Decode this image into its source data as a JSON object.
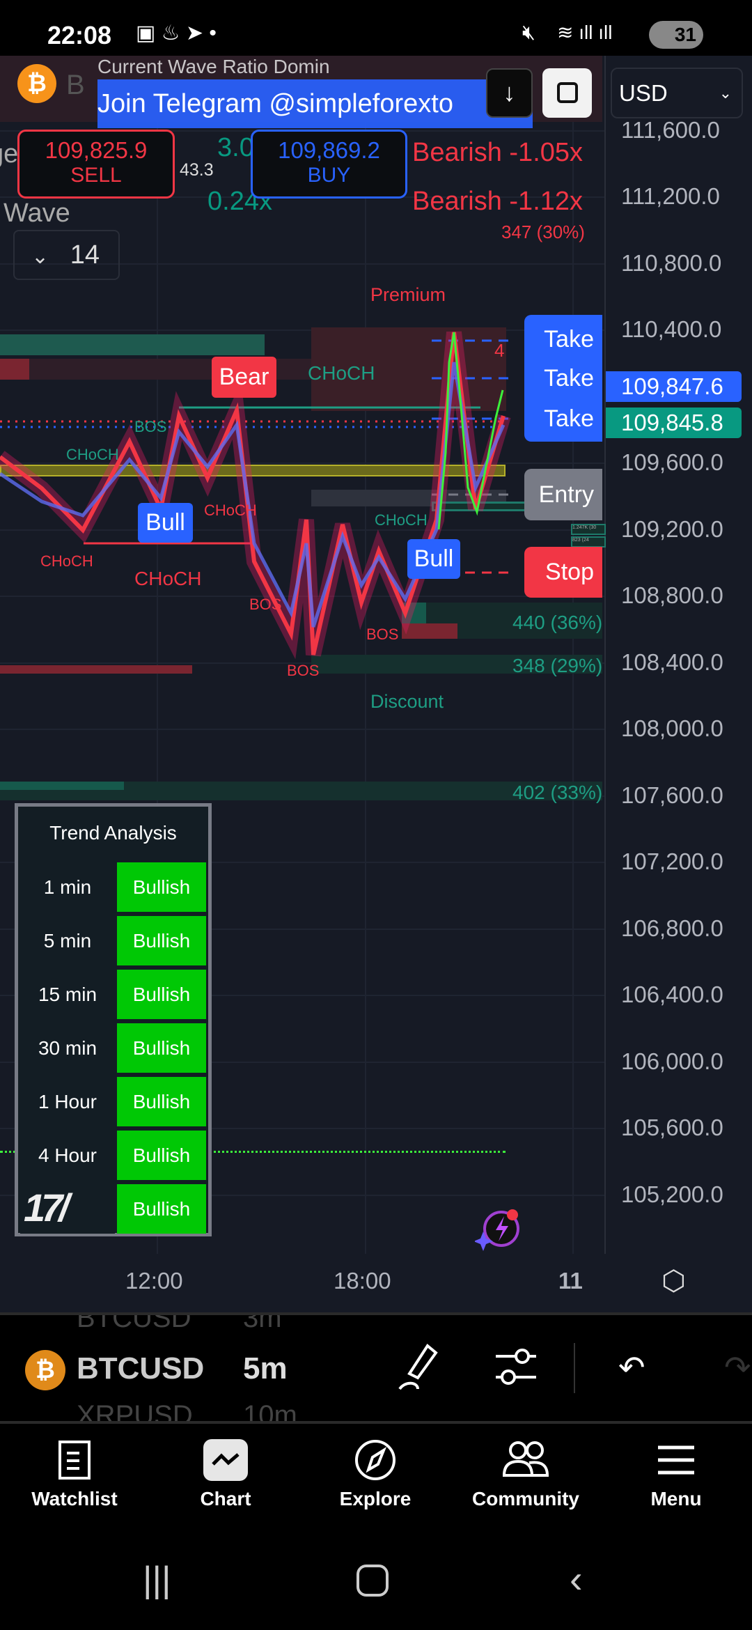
{
  "status_bar": {
    "time": "22:08",
    "battery": "31"
  },
  "chart": {
    "banner_text": "Join Telegram @simpleforexto",
    "banner_ghost_text": "Current Wave Ratio Domin",
    "symbol_letter": "B",
    "sell": {
      "price": "109,825.9",
      "label": "SELL"
    },
    "buy": {
      "price": "109,869.2",
      "label": "BUY"
    },
    "indicator": {
      "row1_left": "ge",
      "row1_mid": "3.0",
      "row1_small": "43.3",
      "row1_right": "Bearish -1.05x",
      "row2_left": "Wave",
      "row2_mid": "0.24x",
      "row2_right": "Bearish -1.12x",
      "row2_small": "347 (30%)"
    },
    "currency": "USD",
    "interval_count": "14",
    "price_axis": [
      "111,600.0",
      "111,200.0",
      "110,800.0",
      "110,400.0",
      "109,600.0",
      "109,200.0",
      "108,800.0",
      "108,400.0",
      "108,000.0",
      "107,600.0",
      "107,200.0",
      "106,800.0",
      "106,400.0",
      "106,000.0",
      "105,600.0",
      "105,200.0"
    ],
    "current_price_ask": "109,847.6",
    "current_price_bid": "109,845.8",
    "time_axis": [
      "12:00",
      "18:00",
      "11"
    ],
    "labels": {
      "premium": "Premium",
      "discount": "Discount",
      "bear": "Bear",
      "bull": "Bull",
      "choch": "CHoCH",
      "bos": "BOS",
      "take": "Take",
      "entry": "Entry",
      "stop": "Stop",
      "vol1": "440 (36%)",
      "vol2": "348 (29%)",
      "vol3": "402 (33%)",
      "small1": "1.247K (30",
      "small2": "823 (24",
      "four": "4"
    },
    "trend_table": {
      "title": "Trend Analysis",
      "rows": [
        {
          "tf": "1 min",
          "trend": "Bullish"
        },
        {
          "tf": "5 min",
          "trend": "Bullish"
        },
        {
          "tf": "15 min",
          "trend": "Bullish"
        },
        {
          "tf": "30 min",
          "trend": "Bullish"
        },
        {
          "tf": "1 Hour",
          "trend": "Bullish"
        },
        {
          "tf": "4 Hour",
          "trend": "Bullish"
        },
        {
          "tf": "",
          "trend": "Bullish"
        }
      ]
    },
    "colors": {
      "bg": "#161a25",
      "bull": "#2962ff",
      "bear": "#f23645",
      "bullish_cell": "#00c805",
      "teal": "#089981"
    }
  },
  "symbol_bar": {
    "symbol": "BTCUSD",
    "interval": "5m",
    "prev_symbol": "BTCUSD",
    "prev_interval": "3m",
    "next_symbol": "XRPUSD",
    "next_interval": "10m"
  },
  "bottom_nav": [
    {
      "label": "Watchlist"
    },
    {
      "label": "Chart"
    },
    {
      "label": "Explore"
    },
    {
      "label": "Community"
    },
    {
      "label": "Menu"
    }
  ]
}
